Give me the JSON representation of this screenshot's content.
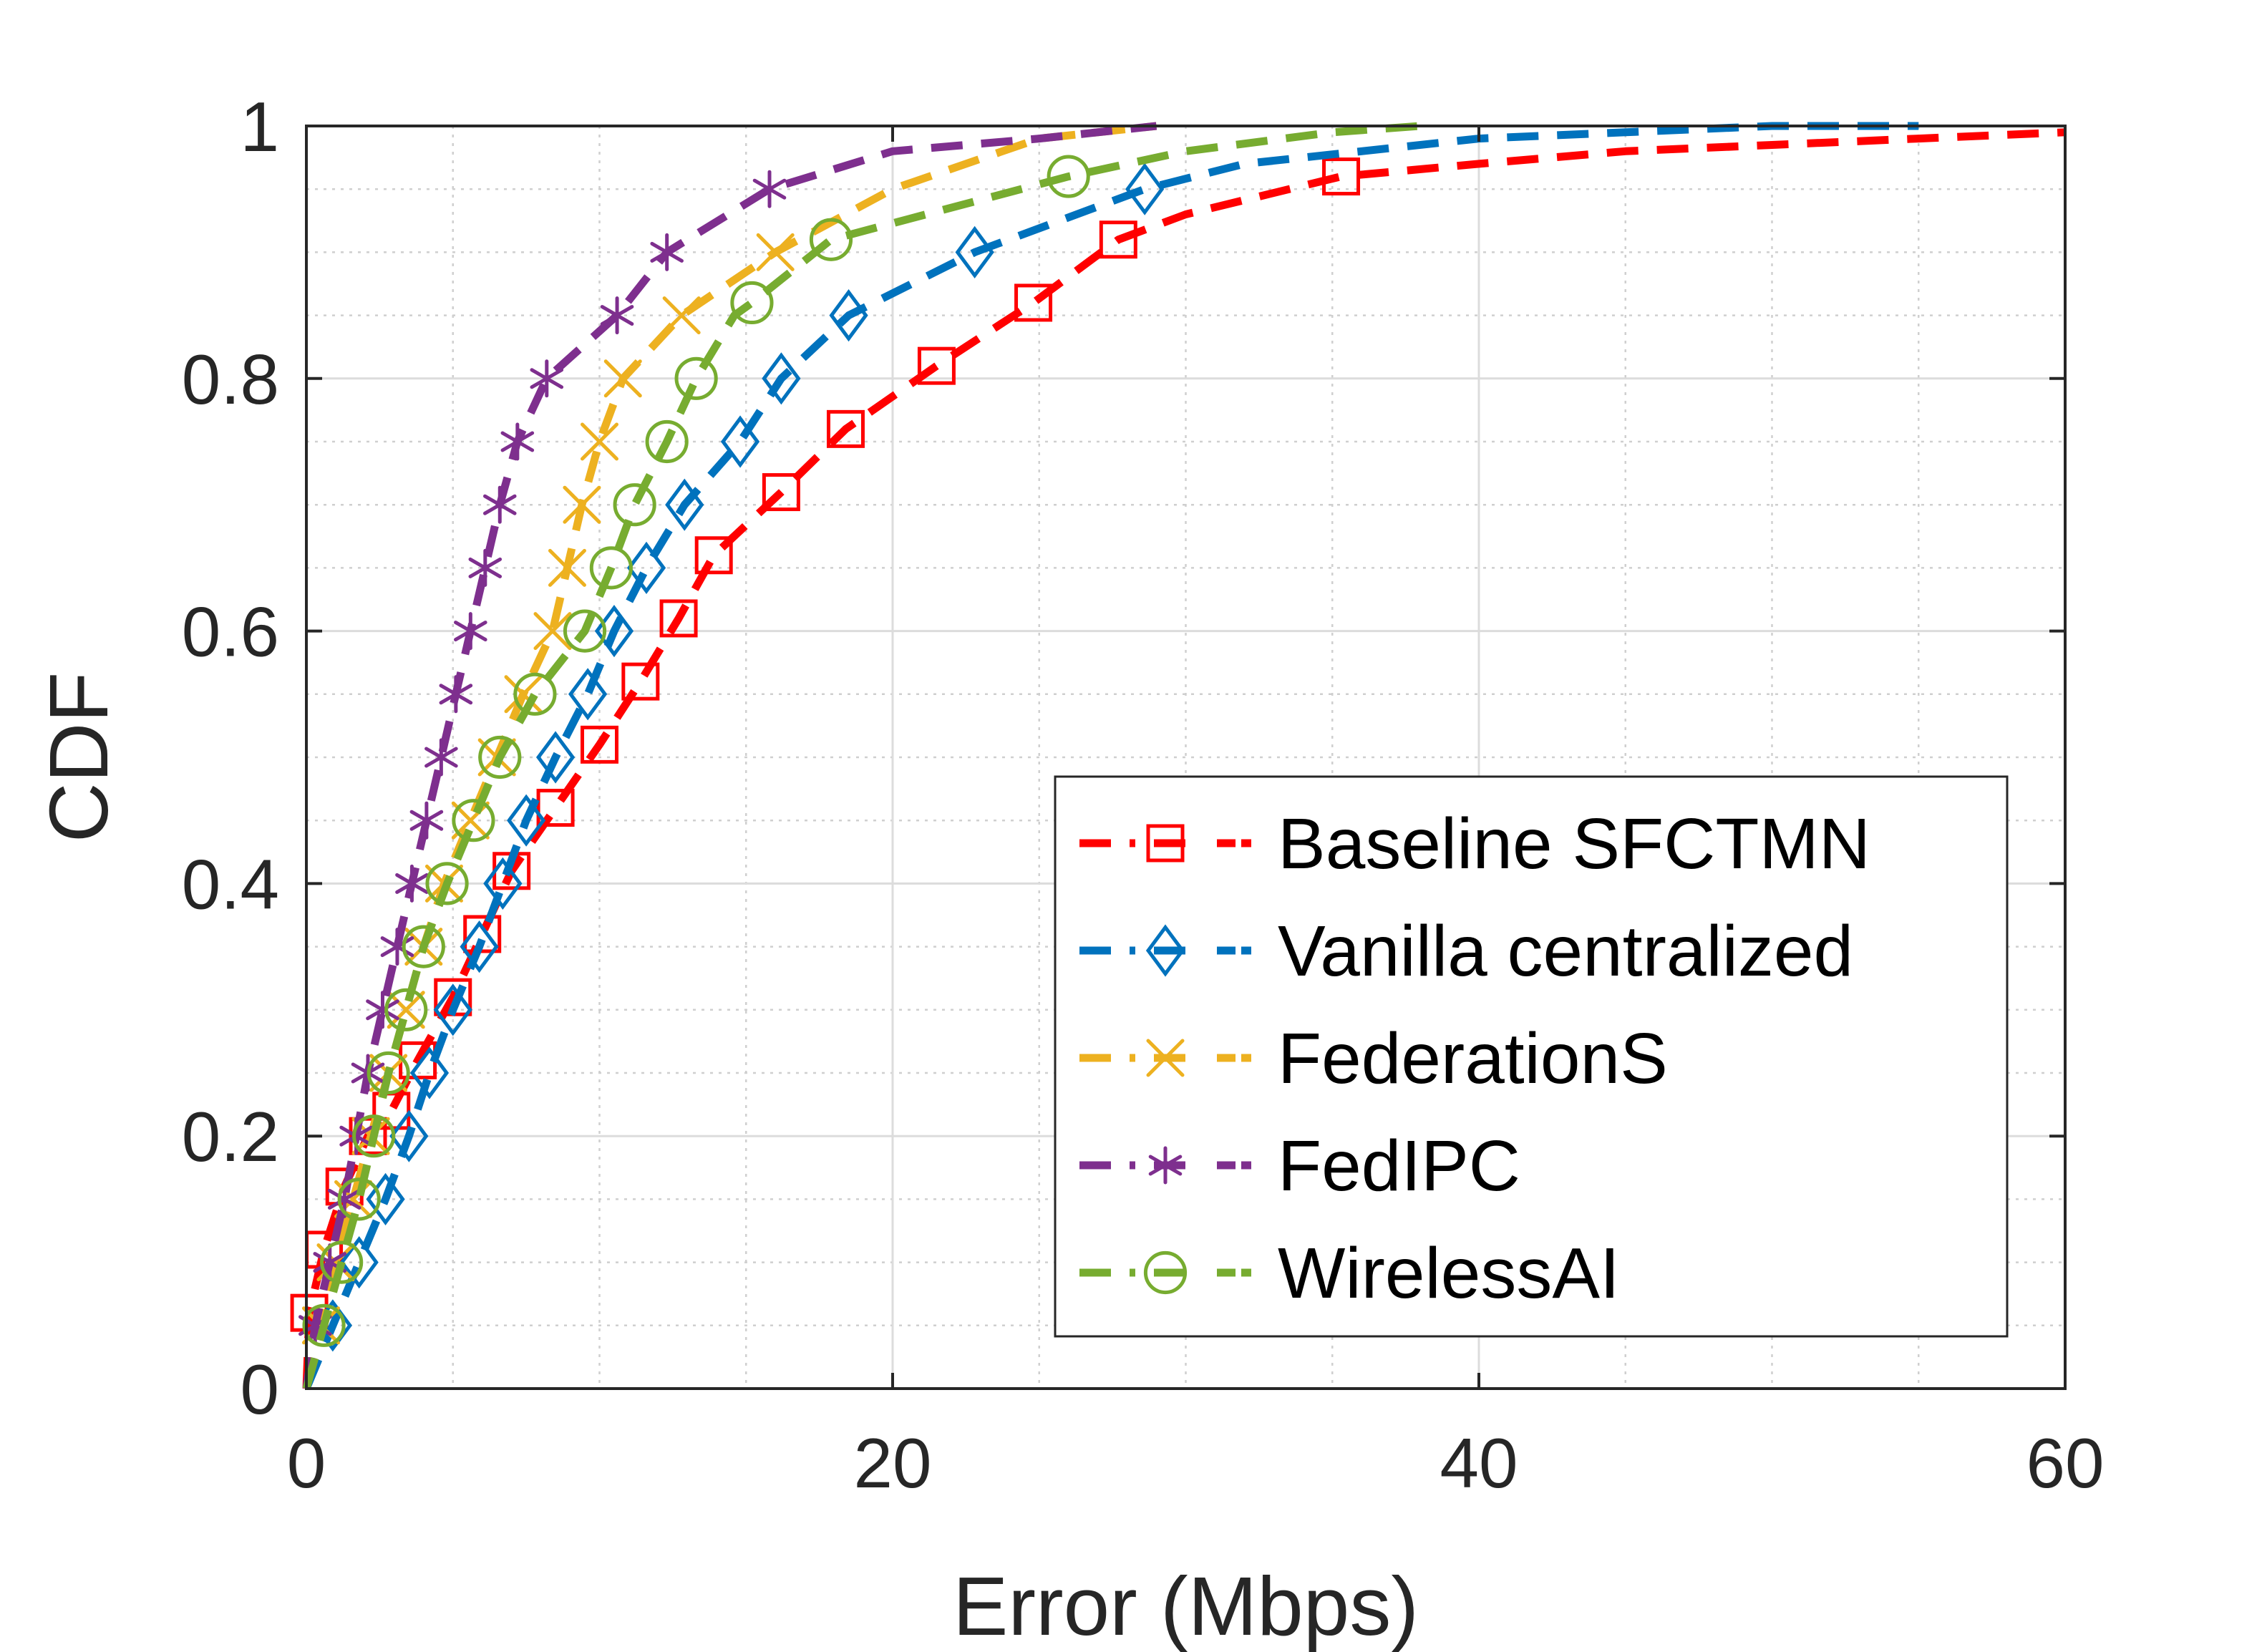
{
  "chart_data": {
    "type": "line",
    "title": "",
    "xlabel": "Error (Mbps)",
    "ylabel": "CDF",
    "xlim": [
      0,
      60
    ],
    "ylim": [
      0,
      1
    ],
    "xticks": [
      0,
      20,
      40,
      60
    ],
    "yticks": [
      0,
      0.2,
      0.4,
      0.6,
      0.8,
      1
    ],
    "xtick_labels": [
      "0",
      "20",
      "40",
      "60"
    ],
    "ytick_labels": [
      "0",
      "0.2",
      "0.4",
      "0.6",
      "0.8",
      "1"
    ],
    "grid": true,
    "minor_grid": true,
    "legend_position": "bottom-right",
    "series": [
      {
        "name": "Baseline SFCTMN",
        "color": "#ff0000",
        "marker": "square",
        "x": [
          0,
          0.1,
          0.6,
          1.3,
          2.1,
          2.9,
          3.8,
          5.0,
          6.0,
          7.0,
          8.5,
          10.0,
          11.4,
          12.7,
          13.9,
          16.2,
          18.4,
          21.5,
          24.8,
          27.7,
          30.0,
          35.3,
          40.0,
          45.0,
          50.0,
          55.0,
          60.0
        ],
        "y": [
          0,
          0.06,
          0.11,
          0.16,
          0.2,
          0.22,
          0.26,
          0.31,
          0.36,
          0.41,
          0.46,
          0.51,
          0.56,
          0.61,
          0.66,
          0.71,
          0.76,
          0.81,
          0.86,
          0.91,
          0.93,
          0.96,
          0.97,
          0.98,
          0.985,
          0.99,
          0.995
        ],
        "marker_x": [
          0.1,
          0.6,
          1.3,
          2.1,
          2.9,
          3.8,
          5.0,
          6.0,
          7.0,
          8.5,
          10.0,
          11.4,
          12.7,
          13.9,
          16.2,
          18.4,
          21.5,
          24.8,
          27.7,
          35.3
        ],
        "marker_y": [
          0.06,
          0.11,
          0.16,
          0.2,
          0.22,
          0.26,
          0.31,
          0.36,
          0.41,
          0.46,
          0.51,
          0.56,
          0.61,
          0.66,
          0.71,
          0.76,
          0.81,
          0.86,
          0.91,
          0.96
        ]
      },
      {
        "name": "Vanilla centralized",
        "color": "#0072bd",
        "marker": "diamond",
        "x": [
          0,
          0.9,
          1.8,
          2.7,
          3.5,
          4.2,
          5.0,
          5.9,
          6.7,
          7.5,
          8.5,
          9.6,
          10.5,
          11.6,
          12.9,
          14.8,
          16.2,
          18.5,
          22.8,
          28.6,
          32.0,
          36.0,
          40.0,
          45.0,
          50.0,
          55.0
        ],
        "y": [
          0,
          0.05,
          0.1,
          0.15,
          0.2,
          0.25,
          0.3,
          0.35,
          0.4,
          0.45,
          0.5,
          0.55,
          0.6,
          0.65,
          0.7,
          0.75,
          0.8,
          0.85,
          0.9,
          0.95,
          0.97,
          0.98,
          0.99,
          0.995,
          1.0,
          1.0
        ],
        "marker_x": [
          0.9,
          1.8,
          2.7,
          3.5,
          4.2,
          5.0,
          5.9,
          6.7,
          7.5,
          8.5,
          9.6,
          10.5,
          11.6,
          12.9,
          14.8,
          16.2,
          18.5,
          22.8,
          28.6
        ],
        "marker_y": [
          0.05,
          0.1,
          0.15,
          0.2,
          0.25,
          0.3,
          0.35,
          0.4,
          0.45,
          0.5,
          0.55,
          0.6,
          0.65,
          0.7,
          0.75,
          0.8,
          0.85,
          0.9,
          0.95
        ]
      },
      {
        "name": "FederationS",
        "color": "#edb120",
        "marker": "x",
        "x": [
          0,
          0.5,
          1.0,
          1.6,
          2.2,
          2.8,
          3.4,
          4.0,
          4.7,
          5.6,
          6.5,
          7.4,
          8.4,
          8.9,
          9.4,
          10.0,
          10.8,
          12.8,
          16.0,
          20.0,
          25.0,
          29.0
        ],
        "y": [
          0,
          0.05,
          0.1,
          0.15,
          0.2,
          0.25,
          0.3,
          0.35,
          0.4,
          0.45,
          0.5,
          0.55,
          0.6,
          0.65,
          0.7,
          0.75,
          0.8,
          0.85,
          0.9,
          0.95,
          0.99,
          1.0
        ],
        "marker_x": [
          0.5,
          1.0,
          1.6,
          2.2,
          2.8,
          3.4,
          4.0,
          4.7,
          5.6,
          6.5,
          7.4,
          8.4,
          8.9,
          9.4,
          10.0,
          10.8,
          12.8,
          16.0
        ],
        "marker_y": [
          0.05,
          0.1,
          0.15,
          0.2,
          0.25,
          0.3,
          0.35,
          0.4,
          0.45,
          0.5,
          0.55,
          0.6,
          0.65,
          0.7,
          0.75,
          0.8,
          0.85,
          0.9
        ]
      },
      {
        "name": "FedIPC",
        "color": "#7e2f8e",
        "marker": "asterisk",
        "x": [
          0,
          0.3,
          0.8,
          1.3,
          1.7,
          2.1,
          2.6,
          3.1,
          3.6,
          4.1,
          4.6,
          5.1,
          5.6,
          6.1,
          6.6,
          7.2,
          8.2,
          10.6,
          12.3,
          15.8,
          20.0,
          25.0,
          29.0
        ],
        "y": [
          0,
          0.05,
          0.1,
          0.15,
          0.2,
          0.25,
          0.3,
          0.35,
          0.4,
          0.45,
          0.5,
          0.55,
          0.6,
          0.65,
          0.7,
          0.75,
          0.8,
          0.85,
          0.9,
          0.95,
          0.98,
          0.99,
          1.0
        ],
        "marker_x": [
          0.3,
          0.8,
          1.3,
          1.7,
          2.1,
          2.6,
          3.1,
          3.6,
          4.1,
          4.6,
          5.1,
          5.6,
          6.1,
          6.6,
          7.2,
          8.2,
          10.6,
          12.3,
          15.8
        ],
        "marker_y": [
          0.05,
          0.1,
          0.15,
          0.2,
          0.25,
          0.3,
          0.35,
          0.4,
          0.45,
          0.5,
          0.55,
          0.6,
          0.65,
          0.7,
          0.75,
          0.8,
          0.85,
          0.9,
          0.95
        ]
      },
      {
        "name": "WirelessAI",
        "color": "#77ac30",
        "marker": "circle",
        "x": [
          0,
          0.6,
          1.2,
          1.8,
          2.3,
          2.8,
          3.4,
          4.0,
          4.8,
          5.7,
          6.6,
          7.8,
          9.5,
          10.4,
          11.2,
          12.3,
          13.3,
          14.6,
          15.2,
          17.9,
          26.0,
          30.0,
          35.0,
          38.0
        ],
        "y": [
          0,
          0.05,
          0.1,
          0.15,
          0.2,
          0.25,
          0.3,
          0.35,
          0.4,
          0.45,
          0.5,
          0.55,
          0.6,
          0.65,
          0.7,
          0.75,
          0.8,
          0.85,
          0.86,
          0.91,
          0.96,
          0.98,
          0.995,
          1.0
        ],
        "marker_x": [
          0.6,
          1.2,
          1.8,
          2.3,
          2.8,
          3.4,
          4.0,
          4.8,
          5.7,
          6.6,
          7.8,
          9.5,
          10.4,
          11.2,
          12.3,
          13.3,
          15.2,
          17.9,
          26.0
        ],
        "marker_y": [
          0.05,
          0.1,
          0.15,
          0.2,
          0.25,
          0.3,
          0.35,
          0.4,
          0.45,
          0.5,
          0.55,
          0.6,
          0.65,
          0.7,
          0.75,
          0.8,
          0.86,
          0.91,
          0.96
        ]
      }
    ]
  }
}
